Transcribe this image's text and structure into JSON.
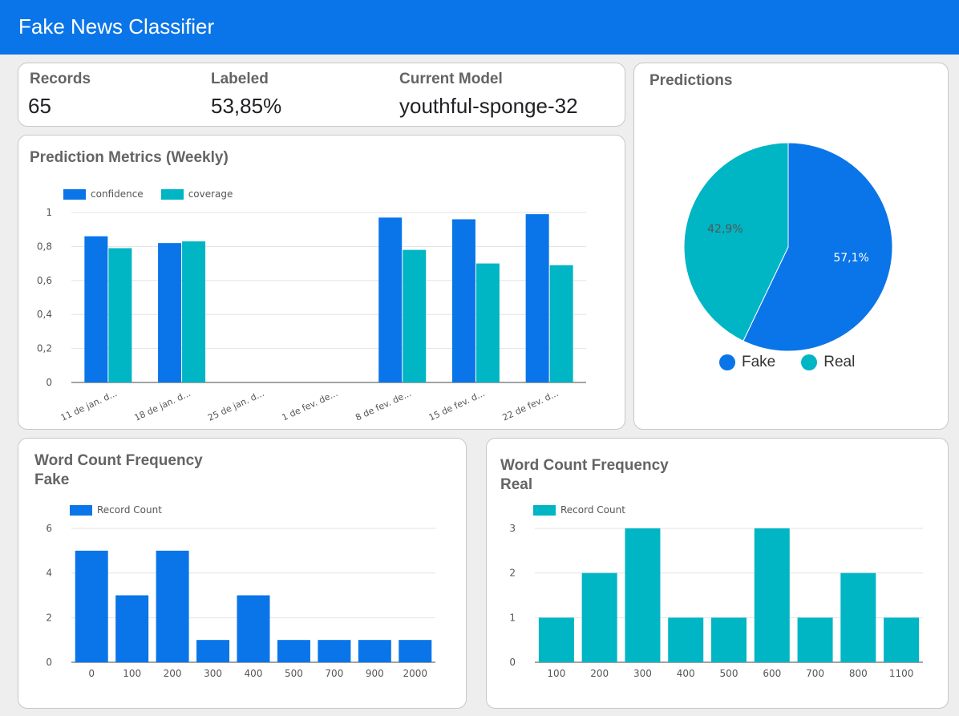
{
  "header": {
    "title": "Fake News Classifier"
  },
  "colors": {
    "accent": "#0a75e8",
    "fake": "#0a75e8",
    "real": "#00b5c4"
  },
  "kpis": [
    {
      "label": "Records",
      "value": "65"
    },
    {
      "label": "Labeled",
      "value": "53,85%"
    },
    {
      "label": "Current Model",
      "value": "youthful-sponge-32"
    }
  ],
  "metrics": {
    "title": "Prediction Metrics (Weekly)",
    "chart_data": {
      "type": "bar",
      "categories": [
        "11 de jan. d...",
        "18 de jan. d...",
        "25 de jan. d...",
        "1 de fev. de...",
        "8 de fev. de...",
        "15 de fev. d...",
        "22 de fev. d..."
      ],
      "series": [
        {
          "name": "confidence",
          "color": "#0a75e8",
          "values": [
            0.86,
            0.82,
            0,
            0,
            0.97,
            0.96,
            0.99
          ]
        },
        {
          "name": "coverage",
          "color": "#00b5c4",
          "values": [
            0.79,
            0.83,
            0,
            0,
            0.78,
            0.7,
            0.69
          ]
        }
      ],
      "yticks": [
        "0",
        "0,2",
        "0,4",
        "0,6",
        "0,8",
        "1"
      ],
      "ylim": [
        0,
        1
      ],
      "legend": "top-left",
      "grid": true
    }
  },
  "predictions": {
    "title": "Predictions",
    "chart_data": {
      "type": "pie",
      "slices": [
        {
          "name": "Fake",
          "value": 57.1,
          "label": "57,1%",
          "color": "#0a75e8"
        },
        {
          "name": "Real",
          "value": 42.9,
          "label": "42,9%",
          "color": "#00b5c4"
        }
      ],
      "legend": "bottom"
    }
  },
  "wc_fake": {
    "title_line1": "Word Count Frequency",
    "title_line2": "Fake",
    "chart_data": {
      "type": "bar",
      "categories": [
        "0",
        "100",
        "200",
        "300",
        "400",
        "500",
        "700",
        "900",
        "2000"
      ],
      "series": [
        {
          "name": "Record Count",
          "color": "#0a75e8",
          "values": [
            5,
            3,
            5,
            1,
            3,
            1,
            1,
            1,
            1
          ]
        }
      ],
      "yticks": [
        "0",
        "2",
        "4",
        "6"
      ],
      "ylim": [
        0,
        6
      ],
      "legend": "top-left",
      "grid": true
    }
  },
  "wc_real": {
    "title_line1": "Word Count Frequency",
    "title_line2": "Real",
    "chart_data": {
      "type": "bar",
      "categories": [
        "100",
        "200",
        "300",
        "400",
        "500",
        "600",
        "700",
        "800",
        "1100"
      ],
      "series": [
        {
          "name": "Record Count",
          "color": "#00b5c4",
          "values": [
            1,
            2,
            3,
            1,
            1,
            3,
            1,
            2,
            1
          ]
        }
      ],
      "yticks": [
        "0",
        "1",
        "2",
        "3"
      ],
      "ylim": [
        0,
        3
      ],
      "legend": "top-left",
      "grid": true
    }
  }
}
